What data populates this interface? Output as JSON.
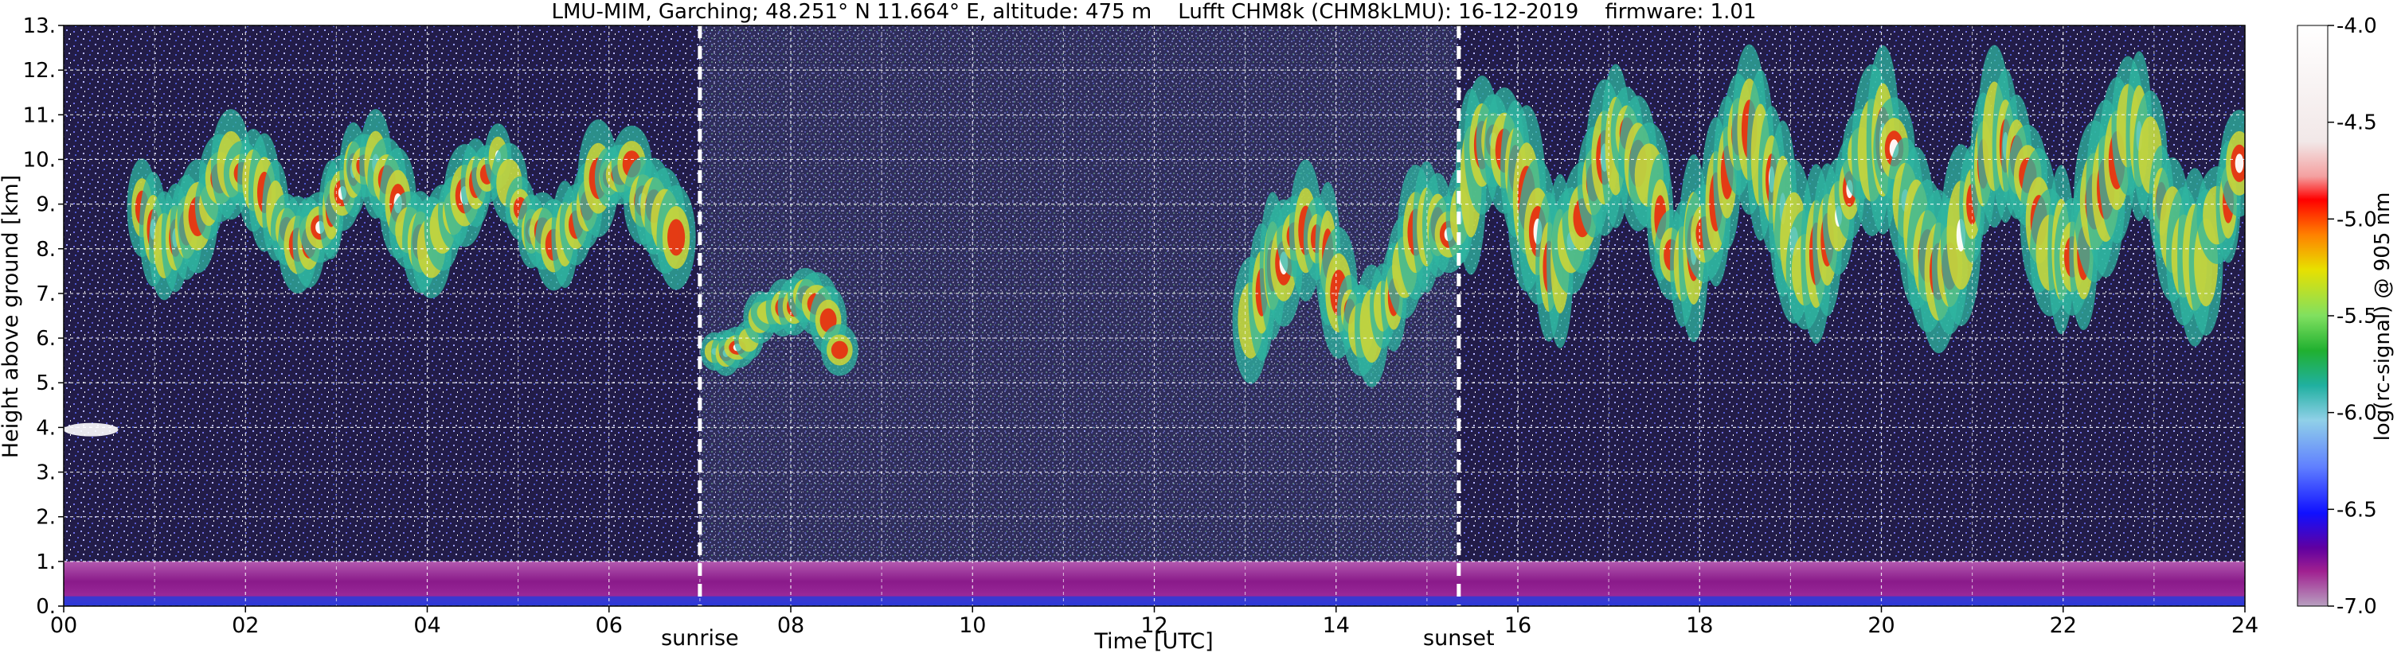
{
  "chart_data": {
    "type": "heatmap",
    "title": "LMU-MIM, Garching; 48.251° N 11.664° E, altitude: 475 m    Lufft CHM8k (CHM8kLMU): 16-12-2019    firmware: 1.01",
    "xlabel": "Time [UTC]",
    "ylabel": "Height above ground [km]",
    "xlim": [
      0,
      24
    ],
    "ylim": [
      0,
      13
    ],
    "x_ticks": [
      "00",
      "02",
      "04",
      "06",
      "08",
      "10",
      "12",
      "14",
      "16",
      "18",
      "20",
      "22",
      "24"
    ],
    "y_ticks": [
      "0.",
      "1.",
      "2.",
      "3.",
      "4.",
      "5.",
      "6.",
      "7.",
      "8.",
      "9.",
      "10.",
      "11.",
      "12.",
      "13."
    ],
    "grid": true,
    "colorbar": {
      "label": "log(rc-signal) @ 905 nm",
      "range": [
        -7.0,
        -4.0
      ],
      "ticks": [
        "-4.0",
        "-4.5",
        "-5.0",
        "-5.5",
        "-6.0",
        "-6.5",
        "-7.0"
      ]
    },
    "annotations": [
      {
        "text": "sunrise",
        "time_utc": 7.0
      },
      {
        "text": "sunset",
        "time_utc": 15.35
      }
    ],
    "colors": {
      "background_noise": "#211a45",
      "noise_speckle": "#6a6ae0",
      "boundary_layer": "#8a1a8a",
      "surface": "#2a3ad8",
      "cloud_low": "#2fb5a0",
      "cloud_mid": "#d8d830",
      "cloud_high": "#e82a10",
      "cloud_peak": "#ffffff",
      "marker_line": "#ffffff"
    },
    "features": [
      {
        "type": "cloud_layer",
        "x_range": [
          0.8,
          6.8
        ],
        "base_km": 7.2,
        "top_km": 10.8
      },
      {
        "type": "cloud_layer",
        "x_range": [
          7.1,
          8.6
        ],
        "base_km": 5.3,
        "top_km": 7.4
      },
      {
        "type": "cloud_layer",
        "x_range": [
          13.0,
          15.3
        ],
        "base_km": 5.2,
        "top_km": 9.6
      },
      {
        "type": "cloud_layer",
        "x_range": [
          15.3,
          24.0
        ],
        "base_km": 6.3,
        "top_km": 11.9
      },
      {
        "type": "aerosol_layer",
        "x_range": [
          0,
          24
        ],
        "base_km": 0.0,
        "top_km": 1.0
      },
      {
        "type": "thin_layer",
        "x_range": [
          0,
          0.6
        ],
        "base_km": 3.8,
        "top_km": 4.1
      }
    ]
  }
}
